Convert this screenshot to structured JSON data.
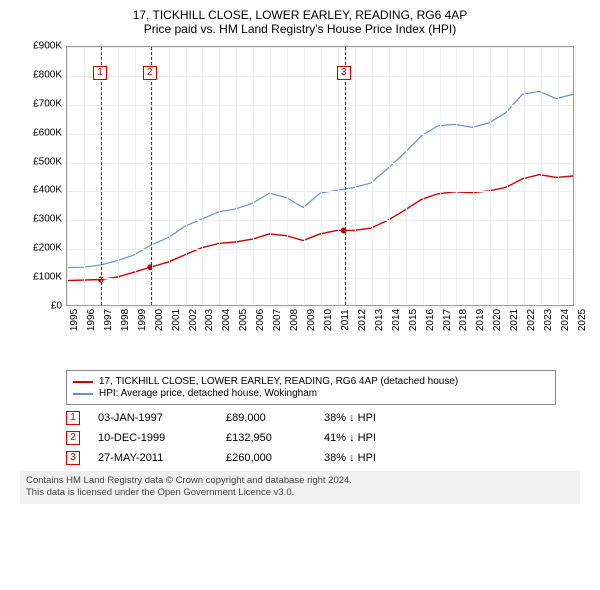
{
  "title": "17, TICKHILL CLOSE, LOWER EARLEY, READING, RG6 4AP",
  "subtitle": "Price paid vs. HM Land Registry's House Price Index (HPI)",
  "chart": {
    "type": "line",
    "background_color": "#ffffff",
    "grid_color": "#eeeeee",
    "axis_color": "#999999",
    "label_fontsize": 10,
    "title_fontsize": 12,
    "x": {
      "min": 1995,
      "max": 2025,
      "ticks": [
        1995,
        1996,
        1997,
        1998,
        1999,
        2000,
        2001,
        2002,
        2003,
        2004,
        2005,
        2006,
        2007,
        2008,
        2009,
        2010,
        2011,
        2012,
        2013,
        2014,
        2015,
        2016,
        2017,
        2018,
        2019,
        2020,
        2021,
        2022,
        2023,
        2024,
        2025
      ]
    },
    "y": {
      "min": 0,
      "max": 900000,
      "ticks": [
        0,
        100000,
        200000,
        300000,
        400000,
        500000,
        600000,
        700000,
        800000,
        900000
      ],
      "tick_labels": [
        "£0",
        "£100K",
        "£200K",
        "£300K",
        "£400K",
        "£500K",
        "£600K",
        "£700K",
        "£800K",
        "£900K"
      ]
    },
    "series": [
      {
        "name": "price_paid",
        "label": "17, TICKHILL CLOSE, LOWER EARLEY, READING, RG6 4AP (detached house)",
        "color": "#cc0000",
        "line_width": 1.4,
        "points": [
          [
            1995,
            85000
          ],
          [
            1996,
            87000
          ],
          [
            1997,
            89000
          ],
          [
            1998,
            98000
          ],
          [
            1999,
            115000
          ],
          [
            2000,
            132950
          ],
          [
            2001,
            150000
          ],
          [
            2002,
            175000
          ],
          [
            2003,
            200000
          ],
          [
            2004,
            215000
          ],
          [
            2005,
            220000
          ],
          [
            2006,
            230000
          ],
          [
            2007,
            248000
          ],
          [
            2008,
            242000
          ],
          [
            2009,
            225000
          ],
          [
            2010,
            248000
          ],
          [
            2011,
            260000
          ],
          [
            2012,
            260000
          ],
          [
            2013,
            268000
          ],
          [
            2014,
            295000
          ],
          [
            2015,
            330000
          ],
          [
            2016,
            368000
          ],
          [
            2017,
            388000
          ],
          [
            2018,
            395000
          ],
          [
            2019,
            392000
          ],
          [
            2020,
            398000
          ],
          [
            2021,
            410000
          ],
          [
            2022,
            440000
          ],
          [
            2023,
            455000
          ],
          [
            2024,
            445000
          ],
          [
            2025,
            450000
          ]
        ]
      },
      {
        "name": "hpi",
        "label": "HPI: Average price, detached house, Wokingham",
        "color": "#6a8fd0",
        "line_width": 1.2,
        "points": [
          [
            1995,
            130000
          ],
          [
            1996,
            132000
          ],
          [
            1997,
            140000
          ],
          [
            1998,
            155000
          ],
          [
            1999,
            175000
          ],
          [
            2000,
            210000
          ],
          [
            2001,
            235000
          ],
          [
            2002,
            275000
          ],
          [
            2003,
            300000
          ],
          [
            2004,
            325000
          ],
          [
            2005,
            335000
          ],
          [
            2006,
            355000
          ],
          [
            2007,
            390000
          ],
          [
            2008,
            375000
          ],
          [
            2009,
            340000
          ],
          [
            2010,
            390000
          ],
          [
            2011,
            400000
          ],
          [
            2012,
            410000
          ],
          [
            2013,
            425000
          ],
          [
            2014,
            475000
          ],
          [
            2015,
            530000
          ],
          [
            2016,
            590000
          ],
          [
            2017,
            625000
          ],
          [
            2018,
            630000
          ],
          [
            2019,
            620000
          ],
          [
            2020,
            635000
          ],
          [
            2021,
            670000
          ],
          [
            2022,
            735000
          ],
          [
            2023,
            745000
          ],
          [
            2024,
            720000
          ],
          [
            2025,
            735000
          ]
        ]
      }
    ],
    "markers": [
      {
        "n": "1",
        "x": 1997.01
      },
      {
        "n": "2",
        "x": 1999.94
      },
      {
        "n": "3",
        "x": 2011.4
      }
    ]
  },
  "legend": {
    "items": [
      {
        "color": "#cc0000",
        "text": "17, TICKHILL CLOSE, LOWER EARLEY, READING, RG6 4AP (detached house)"
      },
      {
        "color": "#6a8fd0",
        "text": "HPI: Average price, detached house, Wokingham"
      }
    ]
  },
  "events": [
    {
      "n": "1",
      "date": "03-JAN-1997",
      "price": "£89,000",
      "delta": "38% ↓ HPI"
    },
    {
      "n": "2",
      "date": "10-DEC-1999",
      "price": "£132,950",
      "delta": "41% ↓ HPI"
    },
    {
      "n": "3",
      "date": "27-MAY-2011",
      "price": "£260,000",
      "delta": "38% ↓ HPI"
    }
  ],
  "footer": {
    "line1": "Contains HM Land Registry data © Crown copyright and database right 2024.",
    "line2": "This data is licensed under the Open Government Licence v3.0."
  }
}
